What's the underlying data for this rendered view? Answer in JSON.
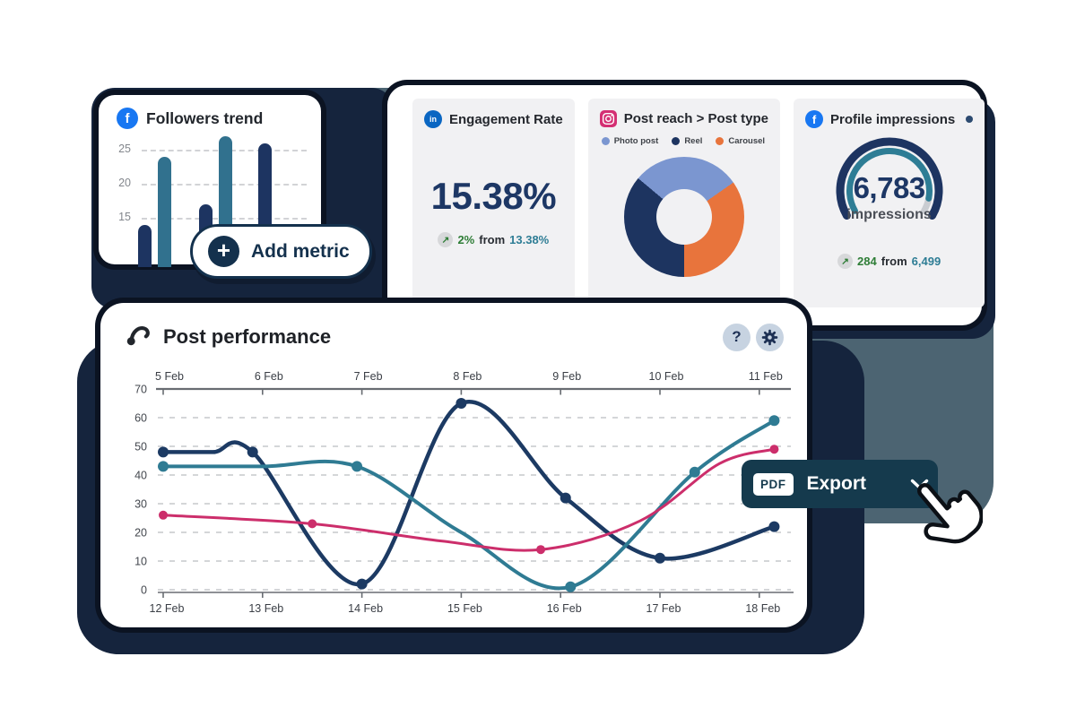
{
  "palette": {
    "slate": "#4c6472",
    "backdrop_navy": "#15243d",
    "ring_dark": "#0b1322",
    "pill_navy": "#14314d",
    "export_bg": "#153a4d",
    "icon_chip": "#c7d3e1",
    "card_gray": "#f1f1f3",
    "facebook_blue": "#1877f2",
    "linkedin_blue": "#0a66c2",
    "instagram_pink": "#d42f73",
    "number_navy": "#1d3765",
    "delta_green": "#2e7d36",
    "stat_teal": "#2e7d95",
    "gauge_navy": "#1d3461",
    "gauge_teal": "#2e7d95",
    "gauge_gray": "#c9ccd1"
  },
  "cards": {
    "followers": {
      "title": "Followers trend"
    },
    "add_metric": {
      "plus": "+",
      "label": "Add metric"
    },
    "engagement": {
      "title": "Engagement Rate",
      "value": "15.38%",
      "delta": {
        "arrow": "↗",
        "change": "2%",
        "from_word": "from",
        "previous": "13.38%"
      }
    },
    "post_reach": {
      "title": "Post reach > Post type",
      "legend": [
        {
          "label": "Photo post",
          "color": "#7b96d0"
        },
        {
          "label": "Reel",
          "color": "#1d3460"
        },
        {
          "label": "Carousel",
          "color": "#e8743c"
        }
      ]
    },
    "impressions": {
      "title": "Profile impressions",
      "value": "6,783",
      "unit": "impressions",
      "delta": {
        "arrow": "↗",
        "change": "284",
        "from_word": "from",
        "previous": "6,499"
      }
    },
    "post_performance": {
      "title": "Post performance",
      "help_glyph": "?"
    }
  },
  "export_button": {
    "badge": "PDF",
    "label": "Export"
  },
  "chart_data": [
    {
      "type": "bar",
      "title": "Followers trend",
      "values": [
        14,
        24,
        17,
        27,
        26
      ],
      "colors": [
        "#1d3461",
        "#31718e",
        "#1d3461",
        "#31718e",
        "#1d3461"
      ],
      "y_ticks": [
        25,
        20,
        15
      ],
      "grid": true
    },
    {
      "type": "pie",
      "subtype": "donut",
      "title": "Post reach > Post type",
      "start_deg": -50,
      "slices": [
        {
          "label": "Photo post",
          "color": "#7b96d0",
          "deg": 105,
          "pct": 29
        },
        {
          "label": "Carousel",
          "color": "#e8743c",
          "deg": 125,
          "pct": 35
        },
        {
          "label": "Reel",
          "color": "#1d3460",
          "deg": 130,
          "pct": 36
        }
      ]
    },
    {
      "type": "gauge",
      "title": "Profile impressions",
      "value": 6783,
      "unit": "impressions",
      "previous": 6499,
      "delta": 284,
      "fill_pct": 0.92,
      "sweep_deg": 240
    },
    {
      "type": "line",
      "title": "Post performance",
      "x_top": [
        "5 Feb",
        "6 Feb",
        "7 Feb",
        "8 Feb",
        "9 Feb",
        "10 Feb",
        "11 Feb"
      ],
      "x_bottom": [
        "12 Feb",
        "13 Feb",
        "14 Feb",
        "15 Feb",
        "16 Feb",
        "17 Feb",
        "18 Feb"
      ],
      "y_ticks": [
        70,
        60,
        50,
        40,
        30,
        20,
        10,
        0
      ],
      "ylim": [
        0,
        70
      ],
      "grid": "dashed horizontal",
      "legend": "none",
      "series": [
        {
          "color": "#1c3a63",
          "width": 4.5,
          "dot_r": 6,
          "points": [
            [
              12,
              48,
              1
            ],
            [
              12.5,
              48,
              0
            ],
            [
              12.9,
              48,
              1
            ],
            [
              14,
              2,
              1
            ],
            [
              15,
              65,
              1
            ],
            [
              16.05,
              32,
              1
            ],
            [
              17,
              11,
              1
            ],
            [
              18.15,
              22,
              1
            ]
          ]
        },
        {
          "color": "#2f7b93",
          "width": 4,
          "dot_r": 6,
          "points": [
            [
              12,
              43,
              1
            ],
            [
              13,
              43,
              0
            ],
            [
              13.95,
              43,
              1
            ],
            [
              15,
              20,
              0
            ],
            [
              16.1,
              1,
              1
            ],
            [
              17.35,
              41,
              1
            ],
            [
              18.15,
              59,
              1
            ]
          ]
        },
        {
          "color": "#cc2e6b",
          "width": 3,
          "dot_r": 5,
          "points": [
            [
              12,
              26,
              1
            ],
            [
              13.5,
              23,
              1
            ],
            [
              14.8,
              17,
              0
            ],
            [
              15.8,
              14,
              1
            ],
            [
              16.8,
              24,
              0
            ],
            [
              17.6,
              44,
              0
            ],
            [
              18.15,
              49,
              1
            ]
          ]
        }
      ]
    }
  ]
}
